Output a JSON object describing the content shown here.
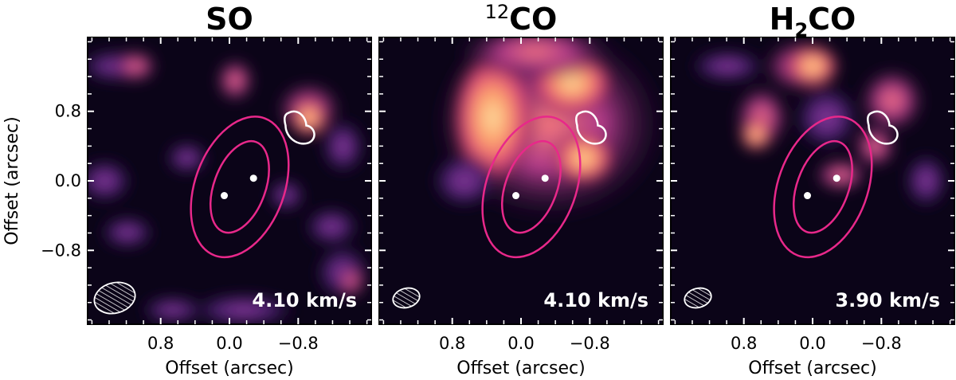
{
  "chart_data": {
    "type": "heatmap",
    "colormap": "magma",
    "xlabel": "Offset (arcsec)",
    "ylabel": "Offset (arcsec)",
    "xlim": [
      1.65,
      -1.65
    ],
    "ylim": [
      -1.65,
      1.65
    ],
    "xticks": [
      {
        "value": 0.8,
        "label": "0.8"
      },
      {
        "value": 0.0,
        "label": "0.0"
      },
      {
        "value": -0.8,
        "label": "−0.8"
      }
    ],
    "yticks": [
      {
        "value": 0.8,
        "label": "0.8"
      },
      {
        "value": 0.0,
        "label": "0.0"
      },
      {
        "value": -0.8,
        "label": "−0.8"
      }
    ],
    "contour_colors": {
      "ellipse": "#e8288a",
      "blob": "#ffffff",
      "dots": "#ffffff",
      "beam": "#ffffff"
    },
    "stars": [
      {
        "x": 0.06,
        "y": -0.17
      },
      {
        "x": -0.28,
        "y": 0.03
      }
    ],
    "panels": [
      {
        "title_pre": "SO",
        "title_sup": "",
        "title_sub": "",
        "title_post": "",
        "velocity": "4.10 km/s"
      },
      {
        "title_pre": "",
        "title_sup": "12",
        "title_sub": "",
        "title_post": "CO",
        "velocity": "4.10 km/s"
      },
      {
        "title_pre": "H",
        "title_sup": "",
        "title_sub": "2",
        "title_post": "CO",
        "velocity": "3.90 km/s"
      }
    ]
  }
}
